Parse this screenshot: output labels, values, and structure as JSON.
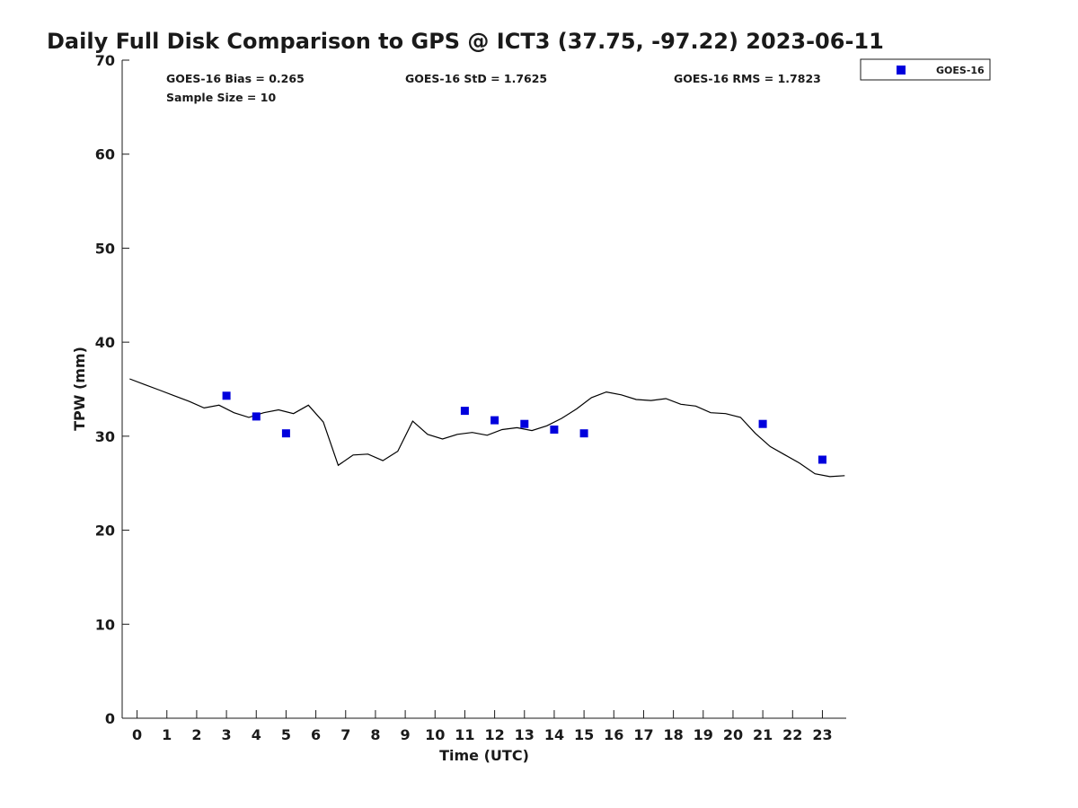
{
  "chart_data": {
    "type": "scatter",
    "title": "Daily Full Disk Comparison to GPS @ ICT3 (37.75, -97.22) 2023-06-11",
    "xlabel": "Time (UTC)",
    "ylabel": "TPW (mm)",
    "xlim": [
      -0.5,
      23.8
    ],
    "ylim": [
      0,
      70
    ],
    "x_ticks": [
      0,
      1,
      2,
      3,
      4,
      5,
      6,
      7,
      8,
      9,
      10,
      11,
      12,
      13,
      14,
      15,
      16,
      17,
      18,
      19,
      20,
      21,
      22,
      23
    ],
    "y_ticks": [
      0,
      10,
      20,
      30,
      40,
      50,
      60,
      70
    ],
    "grid": false,
    "legend_position": "top-right-outside",
    "stats": {
      "bias": "GOES-16 Bias = 0.265",
      "sample_size": "Sample Size = 10",
      "std": "GOES-16 StD = 1.7625",
      "rms": "GOES-16 RMS = 1.7823"
    },
    "series": [
      {
        "name": "GOES-16",
        "type": "scatter",
        "marker": "square",
        "color": "#0000dd",
        "x": [
          3.0,
          4.0,
          5.0,
          11.0,
          12.0,
          13.0,
          14.0,
          15.0,
          21.0,
          23.0
        ],
        "y": [
          34.3,
          32.1,
          30.3,
          32.7,
          31.7,
          31.3,
          30.7,
          30.3,
          31.3,
          27.5
        ]
      },
      {
        "type": "line",
        "color": "#000000",
        "x": [
          -0.25,
          0.25,
          0.75,
          1.25,
          1.75,
          2.25,
          2.75,
          3.25,
          3.75,
          4.25,
          4.75,
          5.25,
          5.75,
          6.25,
          6.75,
          7.25,
          7.75,
          8.25,
          8.75,
          9.25,
          9.75,
          10.25,
          10.75,
          11.25,
          11.75,
          12.25,
          12.75,
          13.25,
          13.75,
          14.25,
          14.75,
          15.25,
          15.75,
          16.25,
          16.75,
          17.25,
          17.75,
          18.25,
          18.75,
          19.25,
          19.75,
          20.25,
          20.75,
          21.25,
          21.75,
          22.25,
          22.75,
          23.25,
          23.75
        ],
        "y": [
          36.1,
          35.5,
          34.9,
          34.3,
          33.7,
          33.0,
          33.3,
          32.5,
          32.0,
          32.5,
          32.8,
          32.4,
          33.3,
          31.5,
          26.9,
          28.0,
          28.1,
          27.4,
          28.4,
          31.6,
          30.2,
          29.7,
          30.2,
          30.4,
          30.1,
          30.7,
          30.9,
          30.6,
          31.1,
          31.9,
          32.9,
          34.1,
          34.7,
          34.4,
          33.9,
          33.8,
          34.0,
          33.4,
          33.2,
          32.5,
          32.4,
          32.0,
          30.3,
          28.9,
          28.0,
          27.1,
          26.0,
          25.7,
          25.8
        ]
      }
    ]
  }
}
